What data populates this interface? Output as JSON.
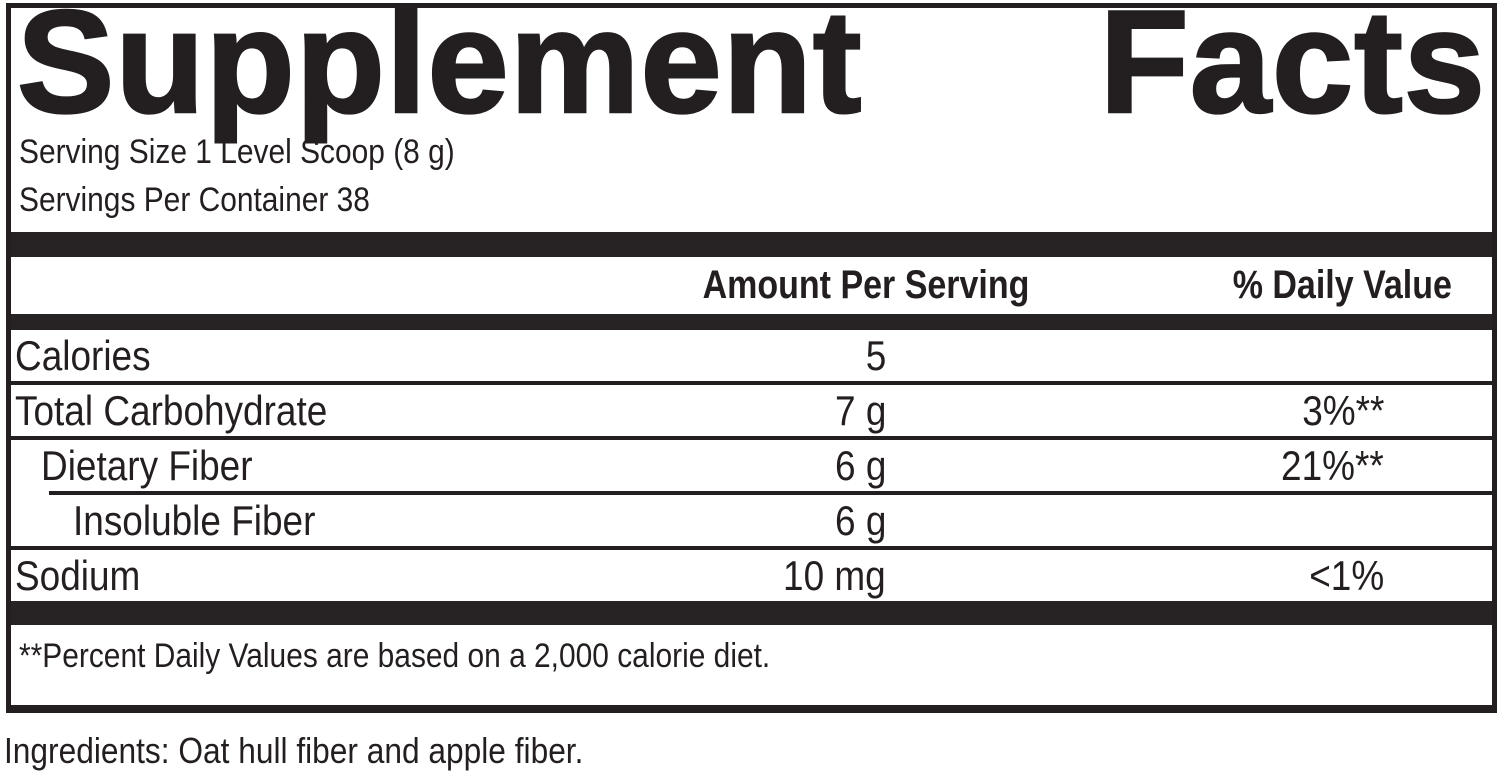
{
  "title": {
    "word1": "Supplement",
    "word2": "Facts"
  },
  "serving": {
    "size": "Serving Size 1 Level Scoop (8 g)",
    "per_container": "Servings Per Container 38"
  },
  "table": {
    "headers": {
      "amount": "Amount Per Serving",
      "daily_value": "% Daily Value"
    },
    "rows": [
      {
        "name": "Calories",
        "indent": 0,
        "amount": "5",
        "daily_value": ""
      },
      {
        "name": "Total Carbohydrate",
        "indent": 0,
        "amount": "7 g",
        "daily_value": "3%**"
      },
      {
        "name": "Dietary Fiber",
        "indent": 1,
        "amount": "6 g",
        "daily_value": "21%**"
      },
      {
        "name": "Insoluble Fiber",
        "indent": 2,
        "amount": "6 g",
        "daily_value": ""
      },
      {
        "name": "Sodium",
        "indent": 0,
        "amount": "10 mg",
        "daily_value": "<1%"
      }
    ]
  },
  "footnote": "**Percent Daily Values are based on a 2,000 calorie diet.",
  "ingredients": "Ingredients: Oat hull fiber and apple fiber.",
  "colors": {
    "ink": "#231f20",
    "bar": "#272324",
    "background": "#ffffff"
  }
}
